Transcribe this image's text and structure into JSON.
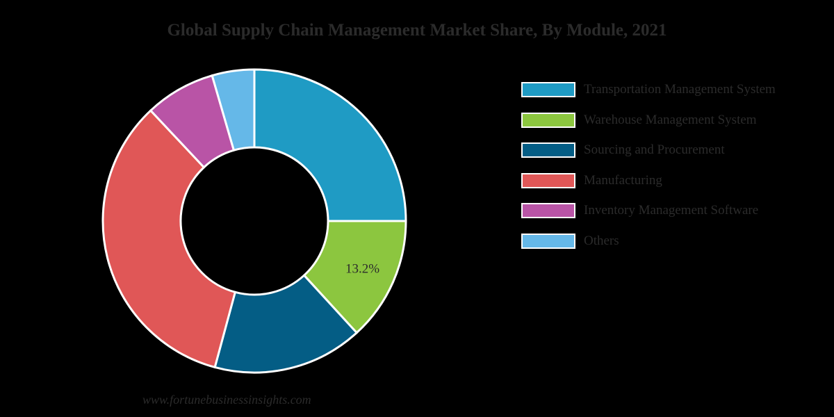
{
  "chart_data": {
    "type": "pie",
    "variant": "donut",
    "title": "Global Supply Chain Management Market Share, By Module, 2021",
    "slices": [
      {
        "label": "Transportation Management System",
        "value": 25.0,
        "color": "#1f9bc4"
      },
      {
        "label": "Warehouse Management System",
        "value": 13.2,
        "color": "#8cc63f",
        "data_label": "13.2%"
      },
      {
        "label": "Sourcing and Procurement",
        "value": 16.0,
        "color": "#045d85"
      },
      {
        "label": "Manufacturing",
        "value": 33.8,
        "color": "#e05757"
      },
      {
        "label": "Inventory Management Software",
        "value": 7.5,
        "color": "#b954a6"
      },
      {
        "label": "Others",
        "value": 4.5,
        "color": "#65b8e8"
      }
    ],
    "legend_position": "right",
    "start_angle_deg": 0,
    "direction": "clockwise",
    "slice_border_color": "#ffffff"
  },
  "footer": {
    "source_url": "www.fortunebusinessinsights.com"
  }
}
